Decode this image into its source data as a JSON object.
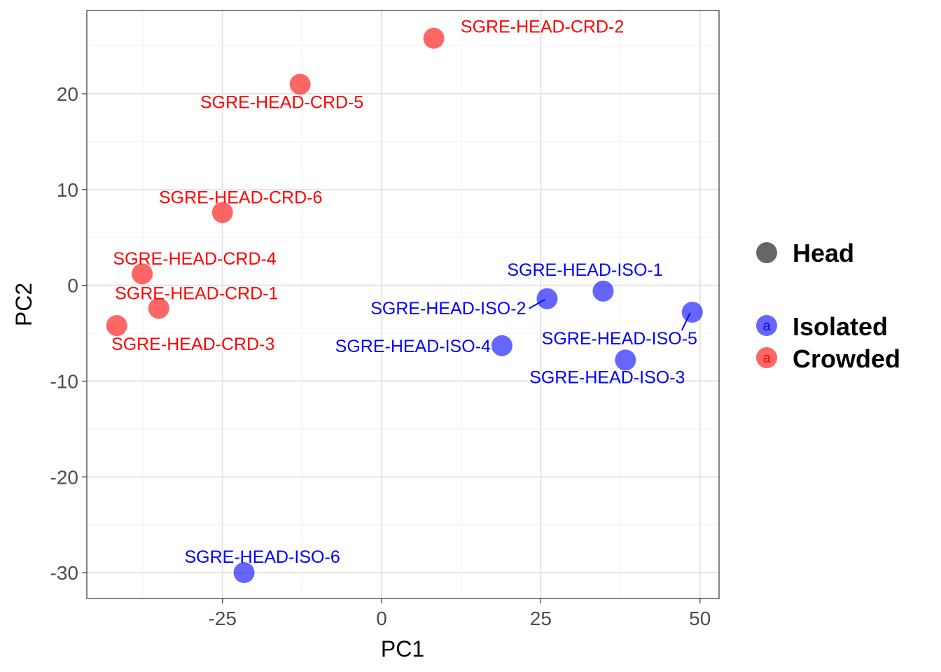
{
  "chart_data": {
    "type": "scatter",
    "title": "",
    "xlabel": "PC1",
    "ylabel": "PC2",
    "xlim": [
      -46.3,
      53
    ],
    "ylim": [
      -32.7,
      28.7
    ],
    "x_ticks": [
      -25,
      0,
      25,
      50
    ],
    "x_tick_labels": [
      "-25",
      "0",
      "25",
      "50"
    ],
    "y_ticks": [
      -30,
      -20,
      -10,
      0,
      10,
      20
    ],
    "y_tick_labels": [
      "-30",
      "-20",
      "-10",
      "0",
      "10",
      "20"
    ],
    "grid": true,
    "legend_position": "right",
    "shape_legend": {
      "label": "Head",
      "color": "#666666"
    },
    "color_legend": [
      {
        "label": "Isolated",
        "key_text": "a",
        "color": "#0000ff"
      },
      {
        "label": "Crowded",
        "key_text": "a",
        "color": "#ff0000"
      }
    ],
    "series": [
      {
        "name": "Isolated",
        "color": "#0000ff",
        "points": [
          {
            "label": "SGRE-HEAD-ISO-1",
            "x": 34.8,
            "y": -0.6
          },
          {
            "label": "SGRE-HEAD-ISO-2",
            "x": 26.0,
            "y": -1.4
          },
          {
            "label": "SGRE-HEAD-ISO-3",
            "x": 38.3,
            "y": -7.8
          },
          {
            "label": "SGRE-HEAD-ISO-4",
            "x": 18.9,
            "y": -6.3
          },
          {
            "label": "SGRE-HEAD-ISO-5",
            "x": 48.8,
            "y": -2.8
          },
          {
            "label": "SGRE-HEAD-ISO-6",
            "x": -21.6,
            "y": -30.0
          }
        ]
      },
      {
        "name": "Crowded",
        "color": "#ff0000",
        "points": [
          {
            "label": "SGRE-HEAD-CRD-1",
            "x": -35.0,
            "y": -2.4
          },
          {
            "label": "SGRE-HEAD-CRD-2",
            "x": 8.2,
            "y": 25.8
          },
          {
            "label": "SGRE-HEAD-CRD-3",
            "x": -41.6,
            "y": -4.2
          },
          {
            "label": "SGRE-HEAD-CRD-4",
            "x": -37.6,
            "y": 1.2
          },
          {
            "label": "SGRE-HEAD-CRD-5",
            "x": -12.8,
            "y": 21.0
          },
          {
            "label": "SGRE-HEAD-CRD-6",
            "x": -25.0,
            "y": 7.6
          }
        ]
      }
    ]
  }
}
